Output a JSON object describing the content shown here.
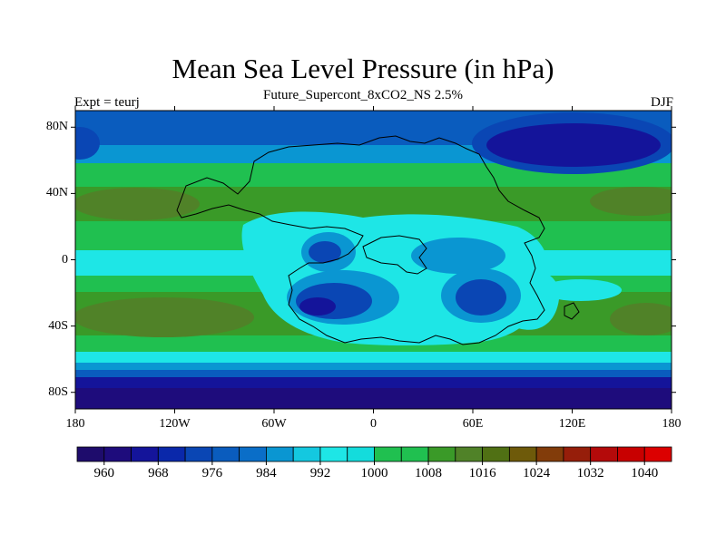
{
  "title": "Mean Sea Level Pressure (in hPa)",
  "subtitle": "Future_Supercont_8xCO2_NS 2.5%",
  "left_label": "Expt = teurj",
  "right_label": "DJF",
  "map": {
    "projection": "cylindrical-equidistant",
    "lon_range": [
      -180,
      180
    ],
    "lat_range": [
      -90,
      90
    ],
    "y_ticks": [
      {
        "lat": 80,
        "label": "80N"
      },
      {
        "lat": 40,
        "label": "40N"
      },
      {
        "lat": 0,
        "label": "0"
      },
      {
        "lat": -40,
        "label": "40S"
      },
      {
        "lat": -80,
        "label": "80S"
      }
    ],
    "x_ticks": [
      {
        "lon": -180,
        "label": "180"
      },
      {
        "lon": -120,
        "label": "120W"
      },
      {
        "lon": -60,
        "label": "60W"
      },
      {
        "lon": 0,
        "label": "0"
      },
      {
        "lon": 60,
        "label": "60E"
      },
      {
        "lon": 120,
        "label": "120E"
      },
      {
        "lon": 180,
        "label": "180"
      }
    ]
  },
  "colorbar": {
    "levels": [
      960,
      964,
      968,
      972,
      976,
      980,
      984,
      988,
      992,
      996,
      1000,
      1004,
      1008,
      1012,
      1016,
      1020,
      1024,
      1028,
      1032,
      1036,
      1040
    ],
    "labels": [
      "960",
      "968",
      "976",
      "984",
      "992",
      "1000",
      "1008",
      "1016",
      "1024",
      "1032",
      "1040"
    ],
    "colors": [
      "#1e0c6c",
      "#1e0c7c",
      "#14149a",
      "#0a28aa",
      "#0a46b4",
      "#0a5cbe",
      "#0a6ec8",
      "#0a96d2",
      "#14c8e0",
      "#1ee6e6",
      "#14dcdc",
      "#20c050",
      "#20c050",
      "#3a9a28",
      "#508228",
      "#507014",
      "#6e5a0a",
      "#823c0a",
      "#961e0a",
      "#b40a0a",
      "#c80000",
      "#dc0000"
    ]
  },
  "colors": {
    "ocean_default": "#1ee6e6",
    "coastline": "#000000"
  }
}
